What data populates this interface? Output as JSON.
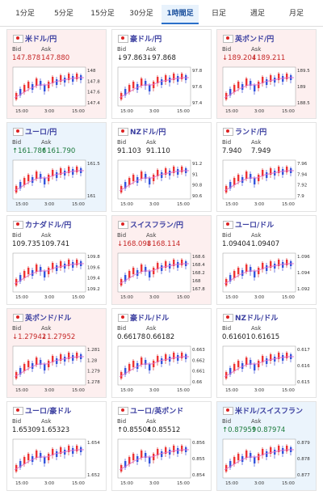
{
  "tabs": [
    "1分足",
    "5分足",
    "15分足",
    "30分足",
    "1時間足",
    "日足",
    "週足",
    "月足"
  ],
  "active_tab": 4,
  "labels": {
    "bid": "Bid",
    "ask": "Ask"
  },
  "time_labels": [
    "15:00",
    "3:00",
    "15:00"
  ],
  "cards": [
    {
      "name": "米ドル/円",
      "bid": "147.878",
      "ask": "147.880",
      "trend": "down",
      "ticks": [
        "148",
        "147.8",
        "147.6",
        "147.4"
      ]
    },
    {
      "name": "豪ドル/円",
      "bid": "↓97.863",
      "ask": "↓97.868",
      "trend": "none",
      "ticks": [
        "97.8",
        "97.6",
        "97.4"
      ]
    },
    {
      "name": "英ポンド/円",
      "bid": "↓189.204",
      "ask": "↓189.211",
      "trend": "down",
      "ticks": [
        "189.5",
        "189",
        "188.5"
      ]
    },
    {
      "name": "ユーロ/円",
      "bid": "↑161.786",
      "ask": "↑161.790",
      "trend": "up",
      "ticks": [
        "161.5",
        "161"
      ]
    },
    {
      "name": "NZドル/円",
      "bid": "91.103",
      "ask": "91.110",
      "trend": "none",
      "ticks": [
        "91.2",
        "91",
        "90.8",
        "90.6"
      ]
    },
    {
      "name": "ランド/円",
      "bid": "7.940",
      "ask": "7.949",
      "trend": "none",
      "ticks": [
        "7.96",
        "7.94",
        "7.92",
        "7.9"
      ]
    },
    {
      "name": "カナダドル/円",
      "bid": "109.735",
      "ask": "109.741",
      "trend": "none",
      "ticks": [
        "109.8",
        "109.6",
        "109.4",
        "109.2"
      ]
    },
    {
      "name": "スイスフラン/円",
      "bid": "↓168.098",
      "ask": "↓168.114",
      "trend": "down",
      "ticks": [
        "168.6",
        "168.4",
        "168.2",
        "168",
        "167.8"
      ]
    },
    {
      "name": "ユーロ/ドル",
      "bid": "1.09404",
      "ask": "1.09407",
      "trend": "none",
      "ticks": [
        "1.096",
        "1.094",
        "1.092"
      ]
    },
    {
      "name": "英ポンド/ドル",
      "bid": "↓1.27942",
      "ask": "↓1.27952",
      "trend": "down",
      "ticks": [
        "1.281",
        "1.28",
        "1.279",
        "1.278"
      ]
    },
    {
      "name": "豪ドル/ドル",
      "bid": "0.66178",
      "ask": "0.66182",
      "trend": "none",
      "ticks": [
        "0.663",
        "0.662",
        "0.661",
        "0.66"
      ]
    },
    {
      "name": "NZドル/ドル",
      "bid": "0.61601",
      "ask": "0.61615",
      "trend": "none",
      "ticks": [
        "0.617",
        "0.616",
        "0.615"
      ]
    },
    {
      "name": "ユーロ/豪ドル",
      "bid": "1.65309",
      "ask": "1.65323",
      "trend": "none",
      "ticks": [
        "1.654",
        "1.652"
      ]
    },
    {
      "name": "ユーロ/英ポンド",
      "bid": "↑0.85504",
      "ask": "↑0.85512",
      "trend": "none",
      "ticks": [
        "0.856",
        "0.855",
        "0.854"
      ]
    },
    {
      "name": "米ドル/スイスフラン",
      "bid": "↑0.87959",
      "ask": "↑0.87974",
      "trend": "up",
      "ticks": [
        "0.879",
        "0.878",
        "0.877"
      ]
    }
  ]
}
